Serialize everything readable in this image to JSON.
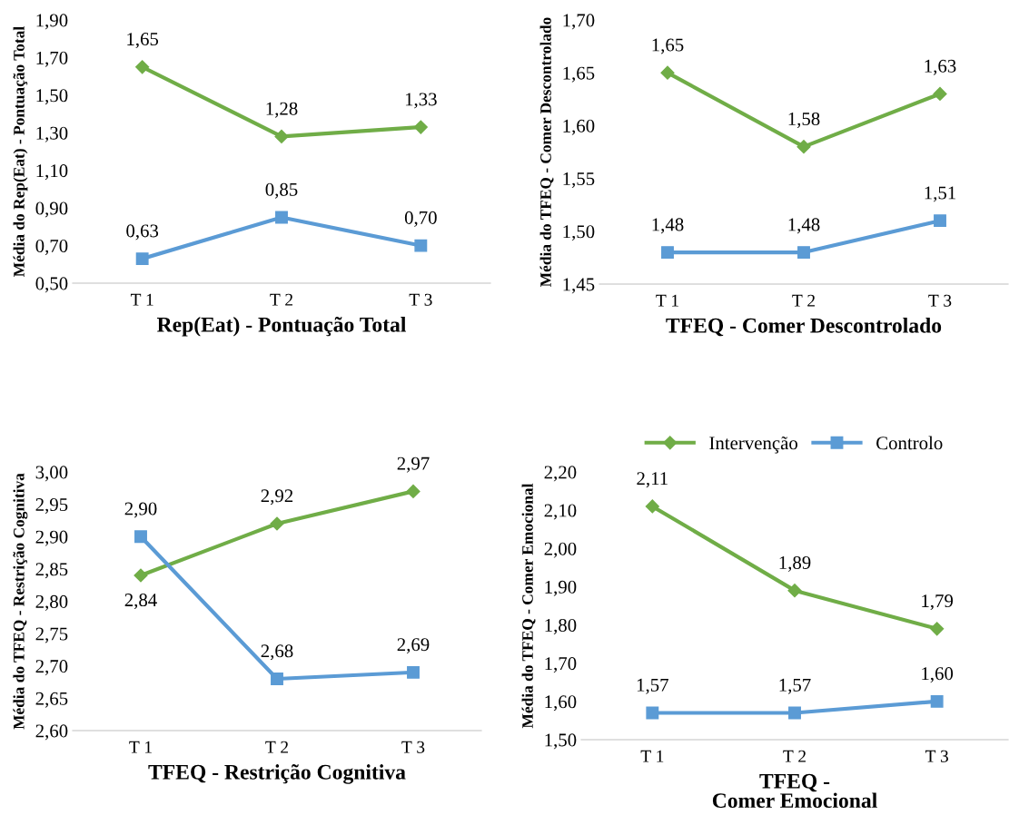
{
  "chart_data": [
    {
      "type": "line",
      "xlabel": "Rep(Eat) - Pontuação Total",
      "ylabel": "Média do Rep(Eat) - Pontuação Total",
      "categories": [
        "T 1",
        "T 2",
        "T 3"
      ],
      "grid": false,
      "ylim": [
        0.5,
        1.9
      ],
      "yticks": [
        {
          "value": 0.5,
          "label": "0,50"
        },
        {
          "value": 0.7,
          "label": "0,70"
        },
        {
          "value": 0.9,
          "label": "0,90"
        },
        {
          "value": 1.1,
          "label": "1,10"
        },
        {
          "value": 1.3,
          "label": "1,30"
        },
        {
          "value": 1.5,
          "label": "1,50"
        },
        {
          "value": 1.7,
          "label": "1,70"
        },
        {
          "value": 1.9,
          "label": "1,90"
        }
      ],
      "series": [
        {
          "color": "#70ad47",
          "marker": "diamond",
          "values": [
            1.65,
            1.28,
            1.33
          ],
          "value_labels": [
            "1,65",
            "1,28",
            "1,33"
          ]
        },
        {
          "color": "#5b9bd5",
          "marker": "square",
          "values": [
            0.63,
            0.85,
            0.7
          ],
          "value_labels": [
            "0,63",
            "0,85",
            "0,70"
          ]
        }
      ]
    },
    {
      "type": "line",
      "xlabel": "TFEQ - Comer Descontrolado",
      "ylabel": "Média do TFEQ - Comer Descontrolado",
      "categories": [
        "T 1",
        "T 2",
        "T 3"
      ],
      "grid": false,
      "ylim": [
        1.45,
        1.7
      ],
      "yticks": [
        {
          "value": 1.45,
          "label": "1,45"
        },
        {
          "value": 1.5,
          "label": "1,50"
        },
        {
          "value": 1.55,
          "label": "1,55"
        },
        {
          "value": 1.6,
          "label": "1,60"
        },
        {
          "value": 1.65,
          "label": "1,65"
        },
        {
          "value": 1.7,
          "label": "1,70"
        }
      ],
      "series": [
        {
          "color": "#70ad47",
          "marker": "diamond",
          "values": [
            1.65,
            1.58,
            1.63
          ],
          "value_labels": [
            "1,65",
            "1,58",
            "1,63"
          ]
        },
        {
          "color": "#5b9bd5",
          "marker": "square",
          "values": [
            1.48,
            1.48,
            1.51
          ],
          "value_labels": [
            "1,48",
            "1,48",
            "1,51"
          ]
        }
      ]
    },
    {
      "type": "line",
      "xlabel": "TFEQ - Restrição Cognitiva",
      "ylabel": "Média do TFEQ - Restrição Cognitiva",
      "categories": [
        "T 1",
        "T 2",
        "T 3"
      ],
      "grid": false,
      "ylim": [
        2.6,
        3.0
      ],
      "yticks": [
        {
          "value": 2.6,
          "label": "2,60"
        },
        {
          "value": 2.65,
          "label": "2,65"
        },
        {
          "value": 2.7,
          "label": "2,70"
        },
        {
          "value": 2.75,
          "label": "2,75"
        },
        {
          "value": 2.8,
          "label": "2,80"
        },
        {
          "value": 2.85,
          "label": "2,85"
        },
        {
          "value": 2.9,
          "label": "2,90"
        },
        {
          "value": 2.95,
          "label": "2,95"
        },
        {
          "value": 3.0,
          "label": "3,00"
        }
      ],
      "series": [
        {
          "color": "#70ad47",
          "marker": "diamond",
          "values": [
            2.84,
            2.92,
            2.97
          ],
          "value_labels": [
            "2,84",
            "2,92",
            "2,97"
          ]
        },
        {
          "color": "#5b9bd5",
          "marker": "square",
          "values": [
            2.9,
            2.68,
            2.69
          ],
          "value_labels": [
            "2,90",
            "2,68",
            "2,69"
          ]
        }
      ]
    },
    {
      "type": "line",
      "xlabel": "TFEQ -\nComer Emocional",
      "ylabel": "Média do TFEQ - Comer Emocional",
      "categories": [
        "T 1",
        "T 2",
        "T 3"
      ],
      "grid": false,
      "legend": "top",
      "ylim": [
        1.5,
        2.2
      ],
      "yticks": [
        {
          "value": 1.5,
          "label": "1,50"
        },
        {
          "value": 1.6,
          "label": "1,60"
        },
        {
          "value": 1.7,
          "label": "1,70"
        },
        {
          "value": 1.8,
          "label": "1,80"
        },
        {
          "value": 1.9,
          "label": "1,90"
        },
        {
          "value": 2.0,
          "label": "2,00"
        },
        {
          "value": 2.1,
          "label": "2,10"
        },
        {
          "value": 2.2,
          "label": "2,20"
        }
      ],
      "series": [
        {
          "name": "Intervenção",
          "color": "#70ad47",
          "marker": "diamond",
          "values": [
            2.11,
            1.89,
            1.79
          ],
          "value_labels": [
            "2,11",
            "1,89",
            "1,79"
          ]
        },
        {
          "name": "Controlo",
          "color": "#5b9bd5",
          "marker": "square",
          "values": [
            1.57,
            1.57,
            1.6
          ],
          "value_labels": [
            "1,57",
            "1,57",
            "1,60"
          ]
        }
      ]
    }
  ]
}
